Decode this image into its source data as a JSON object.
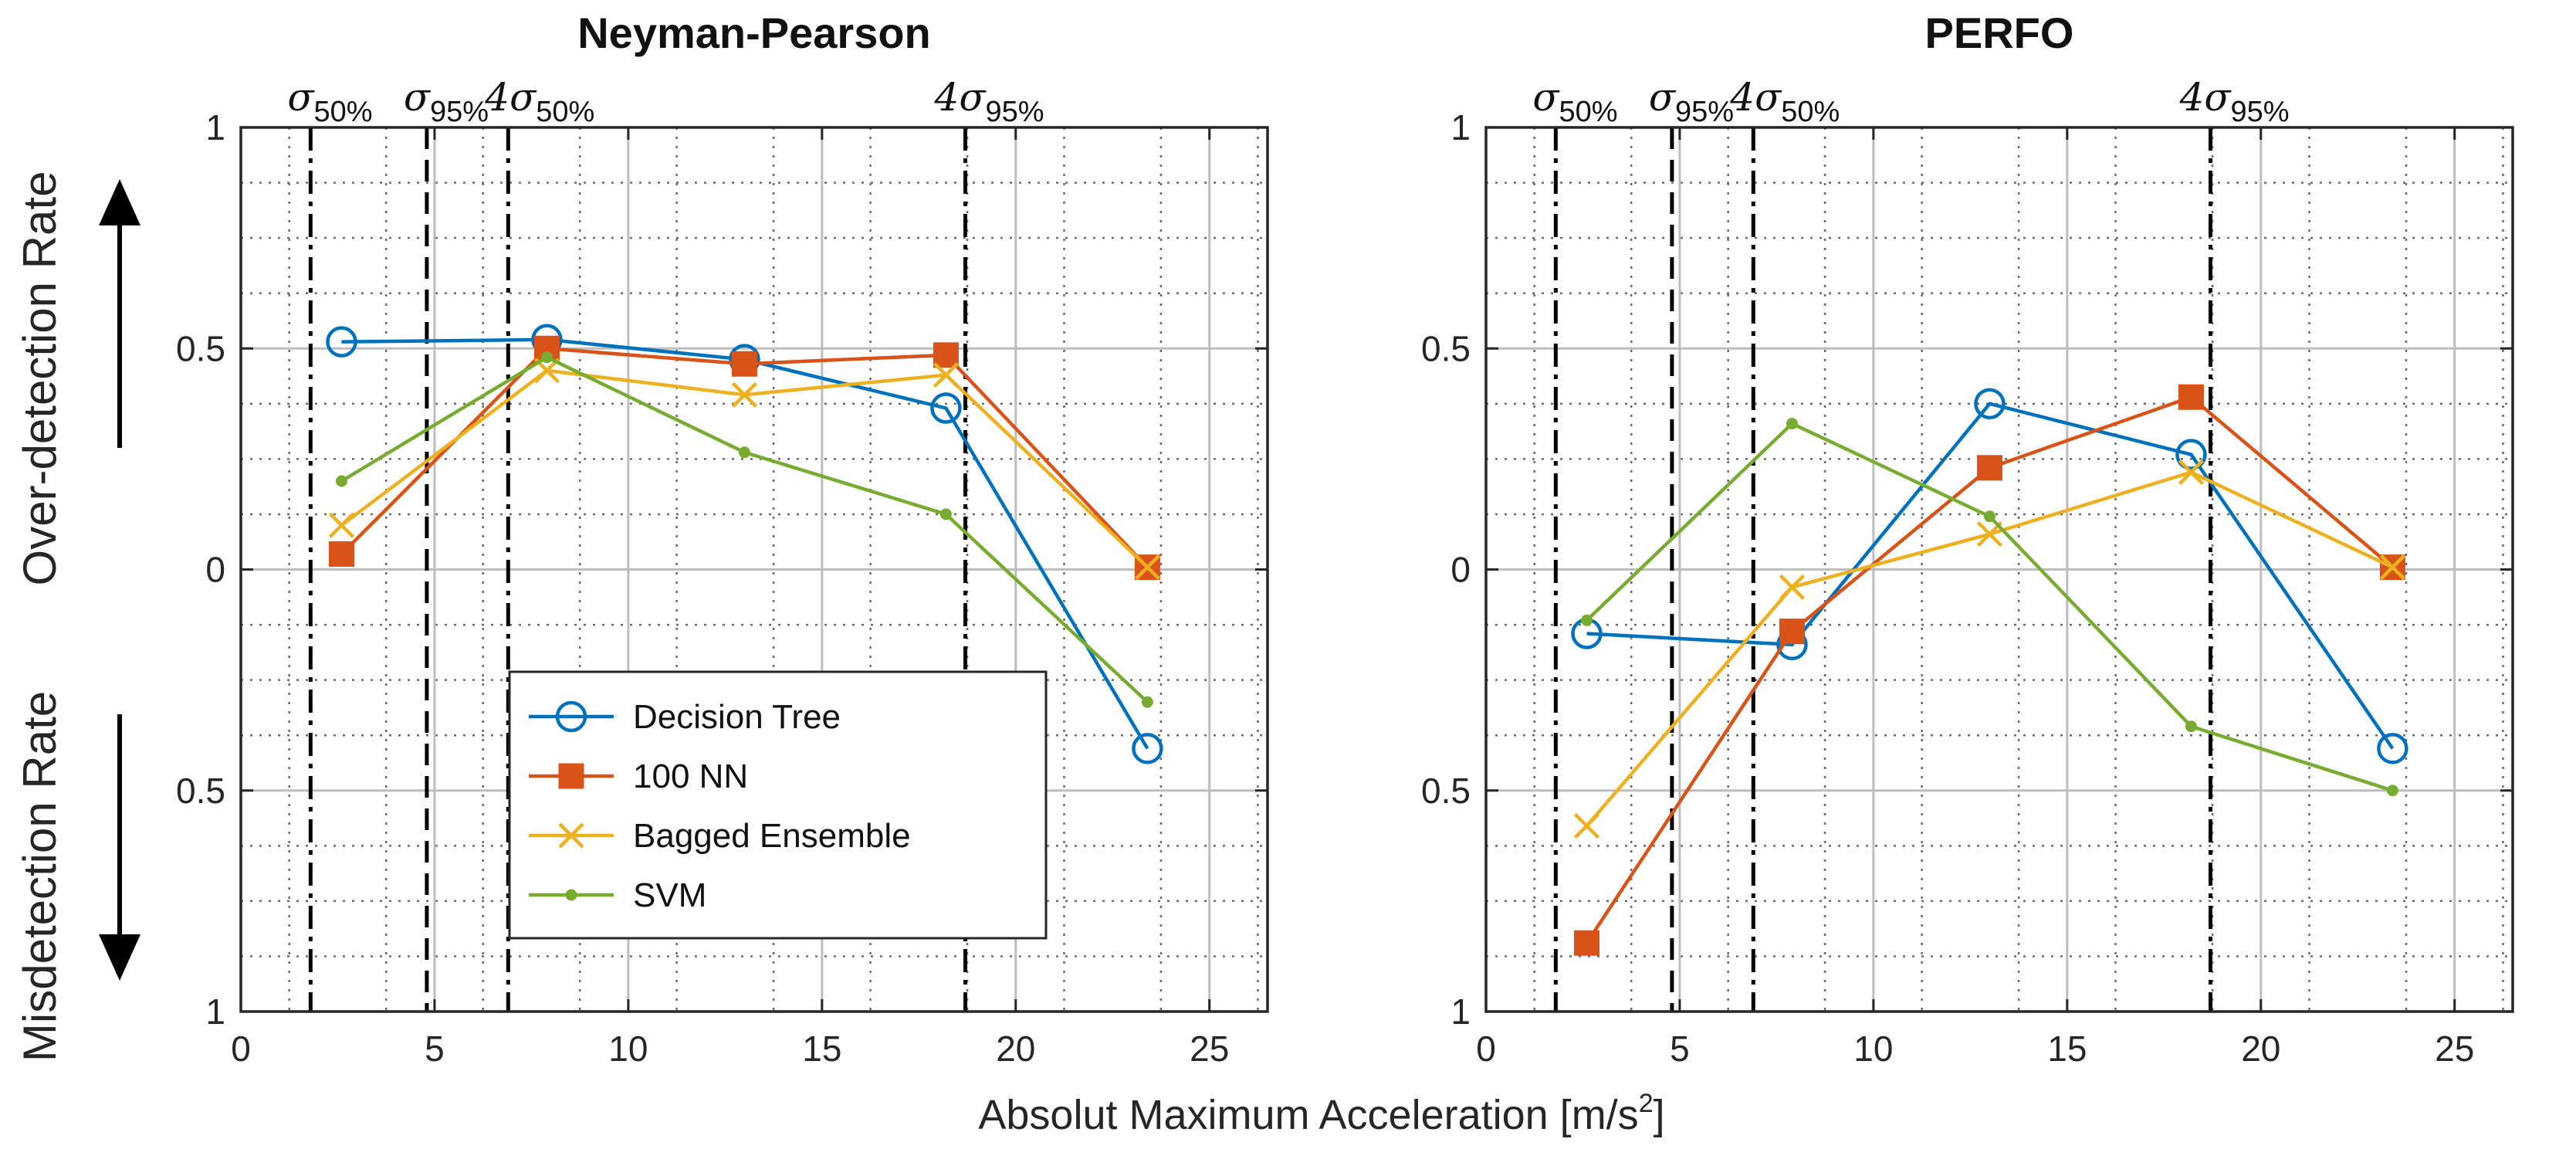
{
  "figure": {
    "xlabel": "Absolut Maximum Acceleration [m/s",
    "xlabel_sup": "2",
    "xlabel_end": "]",
    "up_label": "Over-detection Rate",
    "down_label": "Misdetection Rate"
  },
  "chart_data": [
    {
      "type": "line",
      "title": "Neyman-Pearson",
      "xlim": [
        0,
        26.5
      ],
      "ylim": [
        -1,
        1
      ],
      "xticks": [
        0,
        5,
        10,
        15,
        20,
        25
      ],
      "yticks": [
        1,
        0.5,
        0,
        -0.5,
        -1
      ],
      "ytick_labels": [
        "1",
        "0.5",
        "0",
        "0.5",
        "1"
      ],
      "grid": true,
      "x": [
        2.6,
        7.9,
        13.0,
        18.2,
        23.4
      ],
      "series": [
        {
          "name": "Decision Tree",
          "marker": "circle",
          "values": [
            0.515,
            0.52,
            0.475,
            0.365,
            -0.405
          ]
        },
        {
          "name": "100 NN",
          "marker": "square",
          "values": [
            0.035,
            0.5,
            0.465,
            0.485,
            0.005
          ]
        },
        {
          "name": "Bagged Ensemble",
          "marker": "x",
          "values": [
            0.1,
            0.45,
            0.395,
            0.44,
            0.005
          ]
        },
        {
          "name": "SVM",
          "marker": "dot",
          "values": [
            0.2,
            0.48,
            0.265,
            0.125,
            -0.3
          ]
        }
      ],
      "thresholds": [
        {
          "x": 1.8,
          "style": "dashdot",
          "label": "σ",
          "sub": "50%"
        },
        {
          "x": 4.8,
          "style": "dash",
          "label": "σ",
          "sub": "95%"
        },
        {
          "x": 6.9,
          "style": "dashdot",
          "label": "4σ",
          "sub": "50%"
        },
        {
          "x": 18.7,
          "style": "dashdot",
          "label": "4σ",
          "sub": "95%"
        }
      ],
      "legend_position": "lower-left"
    },
    {
      "type": "line",
      "title": "PERFO",
      "xlim": [
        0,
        26.5
      ],
      "ylim": [
        -1,
        1
      ],
      "xticks": [
        0,
        5,
        10,
        15,
        20,
        25
      ],
      "yticks": [
        1,
        0.5,
        0,
        -0.5,
        -1
      ],
      "ytick_labels": [
        "1",
        "0.5",
        "0",
        "0.5",
        "1"
      ],
      "grid": true,
      "x": [
        2.6,
        7.9,
        13.0,
        18.2,
        23.4
      ],
      "series": [
        {
          "name": "Decision Tree",
          "marker": "circle",
          "values": [
            -0.145,
            -0.17,
            0.375,
            0.26,
            -0.405
          ]
        },
        {
          "name": "100 NN",
          "marker": "square",
          "values": [
            -0.845,
            -0.14,
            0.23,
            0.39,
            0.005
          ]
        },
        {
          "name": "Bagged Ensemble",
          "marker": "x",
          "values": [
            -0.58,
            -0.04,
            0.08,
            0.22,
            0.005
          ]
        },
        {
          "name": "SVM",
          "marker": "dot",
          "values": [
            -0.115,
            0.33,
            0.12,
            -0.355,
            -0.5
          ]
        }
      ],
      "thresholds": [
        {
          "x": 1.8,
          "style": "dashdot",
          "label": "σ",
          "sub": "50%"
        },
        {
          "x": 4.8,
          "style": "dash",
          "label": "σ",
          "sub": "95%"
        },
        {
          "x": 6.9,
          "style": "dashdot",
          "label": "4σ",
          "sub": "50%"
        },
        {
          "x": 18.7,
          "style": "dashdot",
          "label": "4σ",
          "sub": "95%"
        }
      ]
    }
  ],
  "legend": {
    "items": [
      {
        "name": "Decision Tree"
      },
      {
        "name": "100 NN"
      },
      {
        "name": "Bagged Ensemble"
      },
      {
        "name": "SVM"
      }
    ]
  },
  "colors": {
    "Decision Tree": "#0072BD",
    "100 NN": "#D95319",
    "Bagged Ensemble": "#EDB120",
    "SVM": "#77AC30",
    "grid": "#bdbdbd",
    "axis": "#262626"
  }
}
